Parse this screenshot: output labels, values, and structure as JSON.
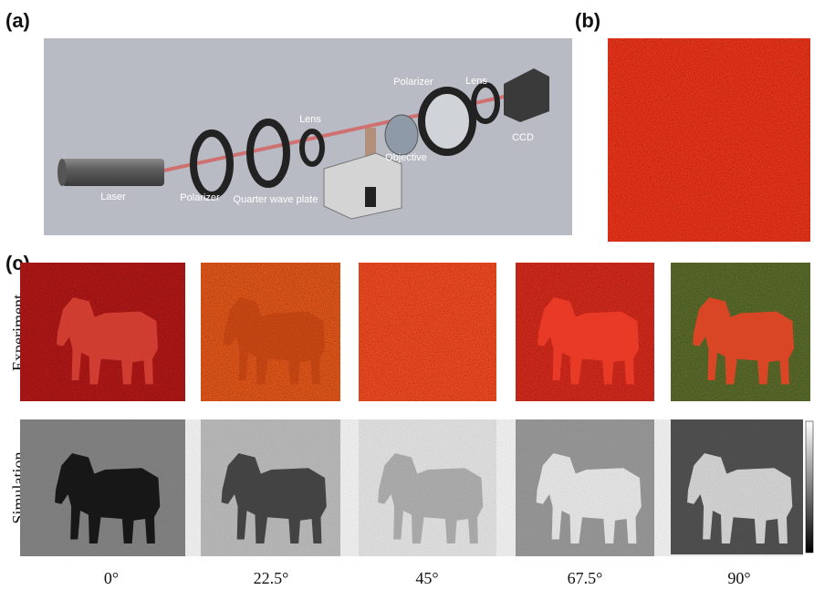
{
  "panels": {
    "a": {
      "label": "(a)",
      "components": [
        "Laser",
        "Polarizer",
        "Quarter wave plate",
        "Lens",
        "Objective",
        "Polarizer",
        "Lens",
        "CCD"
      ]
    },
    "b": {
      "label": "(b)"
    },
    "c": {
      "label": "(c)",
      "rows": [
        "Experiment",
        "Simulation"
      ],
      "angles": [
        "0°",
        "22.5°",
        "45°",
        "67.5°",
        "90°"
      ]
    }
  }
}
